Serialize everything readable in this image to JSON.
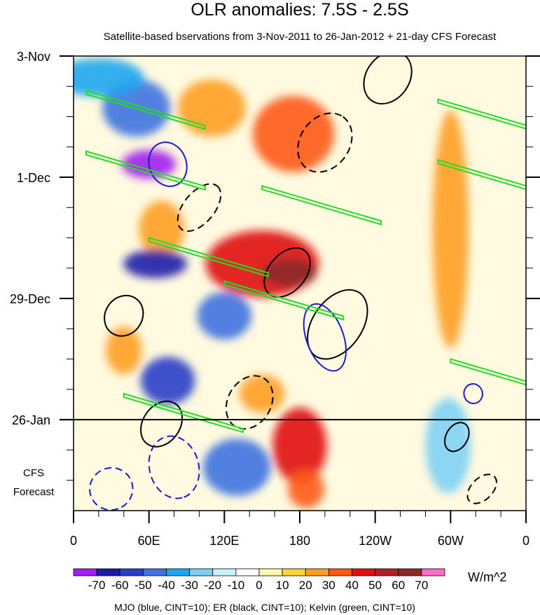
{
  "chart_data": {
    "type": "heatmap",
    "title": "OLR anomalies: 7.5S - 2.5S",
    "subtitle": "Satellite-based bservations from 3-Nov-2011 to 26-Jan-2012 + 21-day CFS Forecast",
    "xlabel": "",
    "ylabel": "",
    "x_ticks": [
      {
        "label": "0",
        "lon": 0
      },
      {
        "label": "60E",
        "lon": 60
      },
      {
        "label": "120E",
        "lon": 120
      },
      {
        "label": "180",
        "lon": 180
      },
      {
        "label": "120W",
        "lon": 240
      },
      {
        "label": "60W",
        "lon": 300
      },
      {
        "label": "0",
        "lon": 360
      }
    ],
    "xlim": [
      0,
      360
    ],
    "y_ticks": [
      {
        "label": "3-Nov",
        "day": 0
      },
      {
        "label": "1-Dec",
        "day": 28
      },
      {
        "label": "29-Dec",
        "day": 56
      },
      {
        "label": "26-Jan",
        "day": 84
      }
    ],
    "ylim_days": [
      0,
      105
    ],
    "forecast_start_day": 84,
    "forecast_label": [
      "CFS",
      "Forecast"
    ],
    "colorbar": {
      "unit": "W/m^2",
      "levels": [
        -70,
        -60,
        -50,
        -40,
        -30,
        -20,
        -10,
        0,
        10,
        20,
        30,
        40,
        50,
        60,
        70
      ],
      "level_labels": [
        "-70",
        "-60",
        "-50",
        "-40",
        "-30",
        "-20",
        "-10",
        "0",
        "10",
        "20",
        "30",
        "40",
        "50",
        "60",
        "70"
      ],
      "colors": [
        "#a020f0",
        "#1c1ca8",
        "#2a3fc8",
        "#3f72e0",
        "#1ea6f0",
        "#7fd0f5",
        "#c8f0f8",
        "#ffffff",
        "#fff7b0",
        "#ffd23c",
        "#ff9e22",
        "#ff5a14",
        "#e01010",
        "#b02020",
        "#8c2a2a",
        "#ff6ec4"
      ]
    },
    "footnote": "MJO (blue, CINT=10); ER (black, CINT=10); Kelvin (green, CINT=10)",
    "contour_colors": {
      "mjo": "#1c1ccc",
      "er": "#000000",
      "kelvin": "#22dd22"
    },
    "anomaly_regions": [
      {
        "lon": 150,
        "day": 48,
        "rx": 25,
        "ry": 7,
        "value": 50
      },
      {
        "lon": 172,
        "day": 50,
        "rx": 12,
        "ry": 3,
        "value": 70
      },
      {
        "lon": 180,
        "day": 90,
        "rx": 12,
        "ry": 8,
        "value": 50
      },
      {
        "lon": 185,
        "day": 100,
        "rx": 8,
        "ry": 4,
        "value": 40
      },
      {
        "lon": 175,
        "day": 18,
        "rx": 18,
        "ry": 8,
        "value": 40
      },
      {
        "lon": 110,
        "day": 12,
        "rx": 15,
        "ry": 6,
        "value": 30
      },
      {
        "lon": 70,
        "day": 40,
        "rx": 10,
        "ry": 6,
        "value": 30
      },
      {
        "lon": 40,
        "day": 68,
        "rx": 8,
        "ry": 5,
        "value": 30
      },
      {
        "lon": 150,
        "day": 78,
        "rx": 10,
        "ry": 4,
        "value": 30
      },
      {
        "lon": 60,
        "day": 25,
        "rx": 12,
        "ry": 3,
        "value": -70
      },
      {
        "lon": 65,
        "day": 48,
        "rx": 14,
        "ry": 3,
        "value": -60
      },
      {
        "lon": 75,
        "day": 75,
        "rx": 12,
        "ry": 5,
        "value": -50
      },
      {
        "lon": 50,
        "day": 12,
        "rx": 15,
        "ry": 6,
        "value": -40
      },
      {
        "lon": 120,
        "day": 60,
        "rx": 12,
        "ry": 5,
        "value": -40
      },
      {
        "lon": 130,
        "day": 95,
        "rx": 15,
        "ry": 6,
        "value": -40
      },
      {
        "lon": 20,
        "day": 5,
        "rx": 20,
        "ry": 4,
        "value": -30
      },
      {
        "lon": 300,
        "day": 40,
        "rx": 8,
        "ry": 25,
        "value": 30
      },
      {
        "lon": 298,
        "day": 90,
        "rx": 10,
        "ry": 10,
        "value": -20
      }
    ]
  }
}
